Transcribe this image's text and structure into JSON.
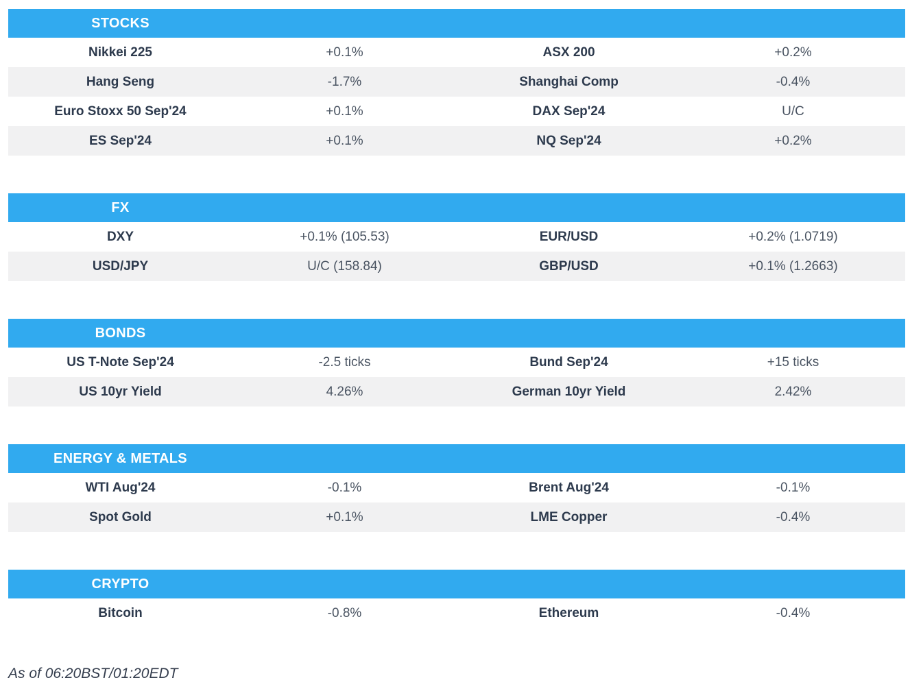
{
  "accent_color": "#31aaef",
  "row_alt_color": "#f1f1f2",
  "label_color": "#2d3a4d",
  "value_color": "#4a5462",
  "sections": [
    {
      "title": "STOCKS",
      "rows": [
        [
          "Nikkei 225",
          "+0.1%",
          "ASX 200",
          "+0.2%"
        ],
        [
          "Hang Seng",
          "-1.7%",
          "Shanghai Comp",
          "-0.4%"
        ],
        [
          "Euro Stoxx 50 Sep'24",
          "+0.1%",
          "DAX Sep'24",
          "U/C"
        ],
        [
          "ES Sep'24",
          "+0.1%",
          "NQ Sep'24",
          "+0.2%"
        ]
      ]
    },
    {
      "title": "FX",
      "rows": [
        [
          "DXY",
          "+0.1% (105.53)",
          "EUR/USD",
          "+0.2% (1.0719)"
        ],
        [
          "USD/JPY",
          "U/C (158.84)",
          "GBP/USD",
          "+0.1% (1.2663)"
        ]
      ]
    },
    {
      "title": "BONDS",
      "rows": [
        [
          "US T-Note Sep'24",
          "-2.5 ticks",
          "Bund Sep'24",
          "+15 ticks"
        ],
        [
          "US 10yr Yield",
          "4.26%",
          "German 10yr Yield",
          "2.42%"
        ]
      ]
    },
    {
      "title": "ENERGY & METALS",
      "rows": [
        [
          "WTI Aug'24",
          "-0.1%",
          "Brent Aug'24",
          "-0.1%"
        ],
        [
          "Spot Gold",
          "+0.1%",
          "LME Copper",
          "-0.4%"
        ]
      ]
    },
    {
      "title": "CRYPTO",
      "rows": [
        [
          "Bitcoin",
          "-0.8%",
          "Ethereum",
          "-0.4%"
        ]
      ]
    }
  ],
  "footer": {
    "as_of": "As of 06:20BST/01:20EDT"
  }
}
